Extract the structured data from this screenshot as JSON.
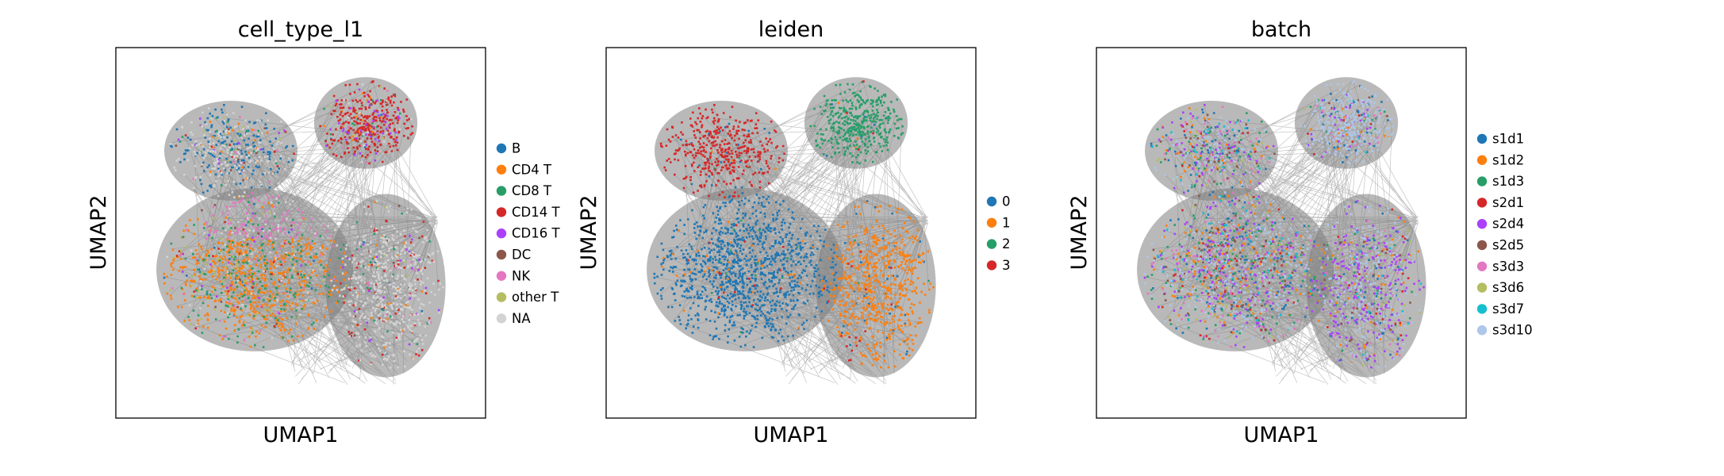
{
  "figure": {
    "background": "#ffffff",
    "edge_color": "#808080"
  },
  "chart_data": [
    {
      "type": "scatter",
      "title": "cell_type_l1",
      "xlabel": "UMAP1",
      "ylabel": "UMAP2",
      "grid": false,
      "ticks": false,
      "legend": "right",
      "categories": [
        {
          "name": "B",
          "color": "#1f77b4"
        },
        {
          "name": "CD4 T",
          "color": "#ff7f0e"
        },
        {
          "name": "CD8 T",
          "color": "#279e68"
        },
        {
          "name": "CD14 T",
          "color": "#d62728"
        },
        {
          "name": "CD16 T",
          "color": "#aa40fc"
        },
        {
          "name": "DC",
          "color": "#8c564b"
        },
        {
          "name": "NK",
          "color": "#e377c2"
        },
        {
          "name": "other T",
          "color": "#b5bd61"
        },
        {
          "name": "NA",
          "color": "#d3d3d3"
        }
      ]
    },
    {
      "type": "scatter",
      "title": "leiden",
      "xlabel": "UMAP1",
      "ylabel": "UMAP2",
      "grid": false,
      "ticks": false,
      "legend": "right",
      "categories": [
        {
          "name": "0",
          "color": "#1f77b4"
        },
        {
          "name": "1",
          "color": "#ff7f0e"
        },
        {
          "name": "2",
          "color": "#279e68"
        },
        {
          "name": "3",
          "color": "#d62728"
        }
      ]
    },
    {
      "type": "scatter",
      "title": "batch",
      "xlabel": "UMAP1",
      "ylabel": "UMAP2",
      "grid": false,
      "ticks": false,
      "legend": "right",
      "categories": [
        {
          "name": "s1d1",
          "color": "#1f77b4"
        },
        {
          "name": "s1d2",
          "color": "#ff7f0e"
        },
        {
          "name": "s1d3",
          "color": "#279e68"
        },
        {
          "name": "s2d1",
          "color": "#d62728"
        },
        {
          "name": "s2d4",
          "color": "#aa40fc"
        },
        {
          "name": "s2d5",
          "color": "#8c564b"
        },
        {
          "name": "s3d3",
          "color": "#e377c2"
        },
        {
          "name": "s3d6",
          "color": "#b5bd61"
        },
        {
          "name": "s3d7",
          "color": "#17becf"
        },
        {
          "name": "s3d10",
          "color": "#aec7e8"
        }
      ]
    }
  ]
}
